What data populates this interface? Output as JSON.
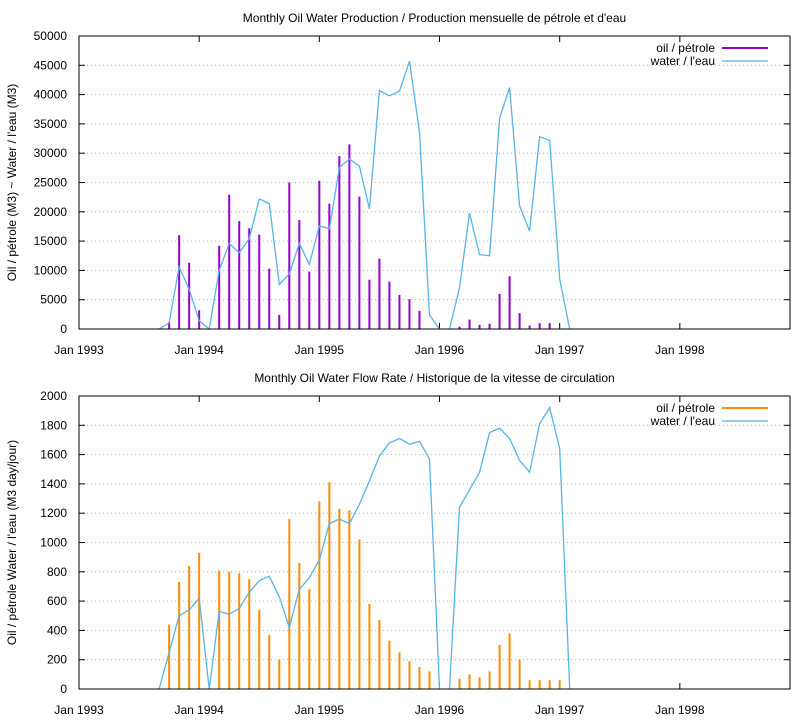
{
  "chart_data": [
    {
      "type": "bar",
      "title": "Monthly Oil  Water Production / Production mensuelle de pétrole et d'eau",
      "xlabel": "",
      "ylabel": "Oil / pétrole (M3) ~  Water / l'eau (M3)",
      "xlim": [
        "1993-01",
        "1998-12"
      ],
      "ylim": [
        0,
        50000
      ],
      "yticks": [
        0,
        5000,
        10000,
        15000,
        20000,
        25000,
        30000,
        35000,
        40000,
        45000,
        50000
      ],
      "xticks": [
        {
          "date": "1993-01",
          "label": "Jan 1993"
        },
        {
          "date": "1994-01",
          "label": "Jan 1994"
        },
        {
          "date": "1995-01",
          "label": "Jan 1995"
        },
        {
          "date": "1996-01",
          "label": "Jan 1996"
        },
        {
          "date": "1997-01",
          "label": "Jan 1997"
        },
        {
          "date": "1998-01",
          "label": "Jan 1998"
        }
      ],
      "grid": "horizontal dotted",
      "legend_position": "top-right",
      "series": [
        {
          "name": "oil / pétrole",
          "style": "impulses",
          "color": "#9400d3",
          "points": [
            [
              "1993-10",
              1200
            ],
            [
              "1993-11",
              16000
            ],
            [
              "1993-12",
              11300
            ],
            [
              "1994-01",
              3200
            ],
            [
              "1994-03",
              14200
            ],
            [
              "1994-04",
              22900
            ],
            [
              "1994-05",
              18400
            ],
            [
              "1994-06",
              17200
            ],
            [
              "1994-07",
              16100
            ],
            [
              "1994-08",
              10300
            ],
            [
              "1994-09",
              2400
            ],
            [
              "1994-10",
              25000
            ],
            [
              "1994-11",
              18600
            ],
            [
              "1994-12",
              9800
            ],
            [
              "1995-01",
              25300
            ],
            [
              "1995-02",
              21400
            ],
            [
              "1995-03",
              29500
            ],
            [
              "1995-04",
              31500
            ],
            [
              "1995-05",
              22600
            ],
            [
              "1995-06",
              8400
            ],
            [
              "1995-07",
              12000
            ],
            [
              "1995-08",
              8100
            ],
            [
              "1995-09",
              5800
            ],
            [
              "1995-10",
              5100
            ],
            [
              "1995-11",
              3100
            ],
            [
              "1996-03",
              400
            ],
            [
              "1996-04",
              1600
            ],
            [
              "1996-05",
              700
            ],
            [
              "1996-06",
              900
            ],
            [
              "1996-07",
              6000
            ],
            [
              "1996-08",
              9000
            ],
            [
              "1996-09",
              2700
            ],
            [
              "1996-10",
              600
            ],
            [
              "1996-11",
              1000
            ],
            [
              "1996-12",
              1000
            ]
          ]
        },
        {
          "name": "water / l'eau",
          "style": "line",
          "color": "#56b4e9",
          "segments": [
            [
              [
                "1993-09",
                0
              ],
              [
                "1993-10",
                1000
              ],
              [
                "1993-11",
                10600
              ],
              [
                "1993-12",
                6800
              ],
              [
                "1994-01",
                1400
              ],
              [
                "1994-02",
                0
              ],
              [
                "1994-03",
                10000
              ],
              [
                "1994-04",
                14600
              ],
              [
                "1994-05",
                13000
              ],
              [
                "1994-06",
                15400
              ],
              [
                "1994-07",
                22200
              ],
              [
                "1994-08",
                21400
              ],
              [
                "1994-09",
                7600
              ],
              [
                "1994-10",
                9400
              ],
              [
                "1994-11",
                14600
              ],
              [
                "1994-12",
                11000
              ],
              [
                "1995-01",
                17600
              ],
              [
                "1995-02",
                17100
              ],
              [
                "1995-03",
                27600
              ],
              [
                "1995-04",
                29000
              ],
              [
                "1995-05",
                27800
              ],
              [
                "1995-06",
                20500
              ],
              [
                "1995-07",
                40700
              ],
              [
                "1995-08",
                39800
              ],
              [
                "1995-09",
                40600
              ],
              [
                "1995-10",
                45700
              ],
              [
                "1995-11",
                33600
              ],
              [
                "1995-12",
                2400
              ],
              [
                "1996-01",
                0
              ]
            ],
            [
              [
                "1996-02",
                0
              ],
              [
                "1996-03",
                7000
              ],
              [
                "1996-04",
                19800
              ],
              [
                "1996-05",
                12700
              ],
              [
                "1996-06",
                12500
              ],
              [
                "1996-07",
                36000
              ],
              [
                "1996-08",
                41200
              ],
              [
                "1996-09",
                21000
              ],
              [
                "1996-10",
                16700
              ],
              [
                "1996-11",
                32800
              ],
              [
                "1996-12",
                32200
              ],
              [
                "1997-01",
                8500
              ],
              [
                "1997-02",
                0
              ]
            ]
          ]
        }
      ]
    },
    {
      "type": "bar",
      "title": "Monthly Oil  Water Flow Rate / Historique de la vitesse de circulation",
      "xlabel": "",
      "ylabel": "Oil / pétrole  Water / l'eau (M3 day/jour)",
      "xlim": [
        "1993-01",
        "1998-12"
      ],
      "ylim": [
        0,
        2000
      ],
      "yticks": [
        0,
        200,
        400,
        600,
        800,
        1000,
        1200,
        1400,
        1600,
        1800,
        2000
      ],
      "xticks": [
        {
          "date": "1993-01",
          "label": "Jan 1993"
        },
        {
          "date": "1994-01",
          "label": "Jan 1994"
        },
        {
          "date": "1995-01",
          "label": "Jan 1995"
        },
        {
          "date": "1996-01",
          "label": "Jan 1996"
        },
        {
          "date": "1997-01",
          "label": "Jan 1997"
        },
        {
          "date": "1998-01",
          "label": "Jan 1998"
        }
      ],
      "grid": "horizontal dotted",
      "legend_position": "top-right",
      "series": [
        {
          "name": "oil / pétrole",
          "style": "impulses",
          "color": "#ff8c00",
          "points": [
            [
              "1993-10",
              440
            ],
            [
              "1993-11",
              730
            ],
            [
              "1993-12",
              840
            ],
            [
              "1994-01",
              930
            ],
            [
              "1994-03",
              810
            ],
            [
              "1994-04",
              800
            ],
            [
              "1994-05",
              790
            ],
            [
              "1994-06",
              750
            ],
            [
              "1994-07",
              540
            ],
            [
              "1994-08",
              370
            ],
            [
              "1994-09",
              200
            ],
            [
              "1994-10",
              1160
            ],
            [
              "1994-11",
              860
            ],
            [
              "1994-12",
              680
            ],
            [
              "1995-01",
              1280
            ],
            [
              "1995-02",
              1410
            ],
            [
              "1995-03",
              1230
            ],
            [
              "1995-04",
              1220
            ],
            [
              "1995-05",
              1020
            ],
            [
              "1995-06",
              580
            ],
            [
              "1995-07",
              470
            ],
            [
              "1995-08",
              330
            ],
            [
              "1995-09",
              250
            ],
            [
              "1995-10",
              190
            ],
            [
              "1995-11",
              150
            ],
            [
              "1995-12",
              120
            ],
            [
              "1996-03",
              70
            ],
            [
              "1996-04",
              100
            ],
            [
              "1996-05",
              80
            ],
            [
              "1996-06",
              120
            ],
            [
              "1996-07",
              300
            ],
            [
              "1996-08",
              380
            ],
            [
              "1996-09",
              200
            ],
            [
              "1996-10",
              60
            ],
            [
              "1996-11",
              60
            ],
            [
              "1996-12",
              60
            ],
            [
              "1997-01",
              60
            ]
          ]
        },
        {
          "name": "water / l'eau",
          "style": "line",
          "color": "#56b4e9",
          "segments": [
            [
              [
                "1993-09",
                0
              ],
              [
                "1993-10",
                250
              ],
              [
                "1993-11",
                500
              ],
              [
                "1993-12",
                540
              ],
              [
                "1994-01",
                620
              ],
              [
                "1994-02",
                0
              ],
              [
                "1994-03",
                530
              ],
              [
                "1994-04",
                510
              ],
              [
                "1994-05",
                550
              ],
              [
                "1994-06",
                660
              ],
              [
                "1994-07",
                740
              ],
              [
                "1994-08",
                770
              ],
              [
                "1994-09",
                630
              ],
              [
                "1994-10",
                420
              ],
              [
                "1994-11",
                680
              ],
              [
                "1994-12",
                760
              ],
              [
                "1995-01",
                880
              ],
              [
                "1995-02",
                1130
              ],
              [
                "1995-03",
                1160
              ],
              [
                "1995-04",
                1130
              ],
              [
                "1995-05",
                1260
              ],
              [
                "1995-06",
                1420
              ],
              [
                "1995-07",
                1590
              ],
              [
                "1995-08",
                1680
              ],
              [
                "1995-09",
                1710
              ],
              [
                "1995-10",
                1670
              ],
              [
                "1995-11",
                1690
              ],
              [
                "1995-12",
                1570
              ],
              [
                "1996-01",
                0
              ]
            ],
            [
              [
                "1996-02",
                0
              ],
              [
                "1996-03",
                1240
              ],
              [
                "1996-04",
                1360
              ],
              [
                "1996-05",
                1480
              ],
              [
                "1996-06",
                1750
              ],
              [
                "1996-07",
                1780
              ],
              [
                "1996-08",
                1710
              ],
              [
                "1996-09",
                1560
              ],
              [
                "1996-10",
                1480
              ],
              [
                "1996-11",
                1810
              ],
              [
                "1996-12",
                1920
              ],
              [
                "1997-01",
                1640
              ],
              [
                "1997-02",
                0
              ]
            ]
          ]
        }
      ]
    }
  ]
}
